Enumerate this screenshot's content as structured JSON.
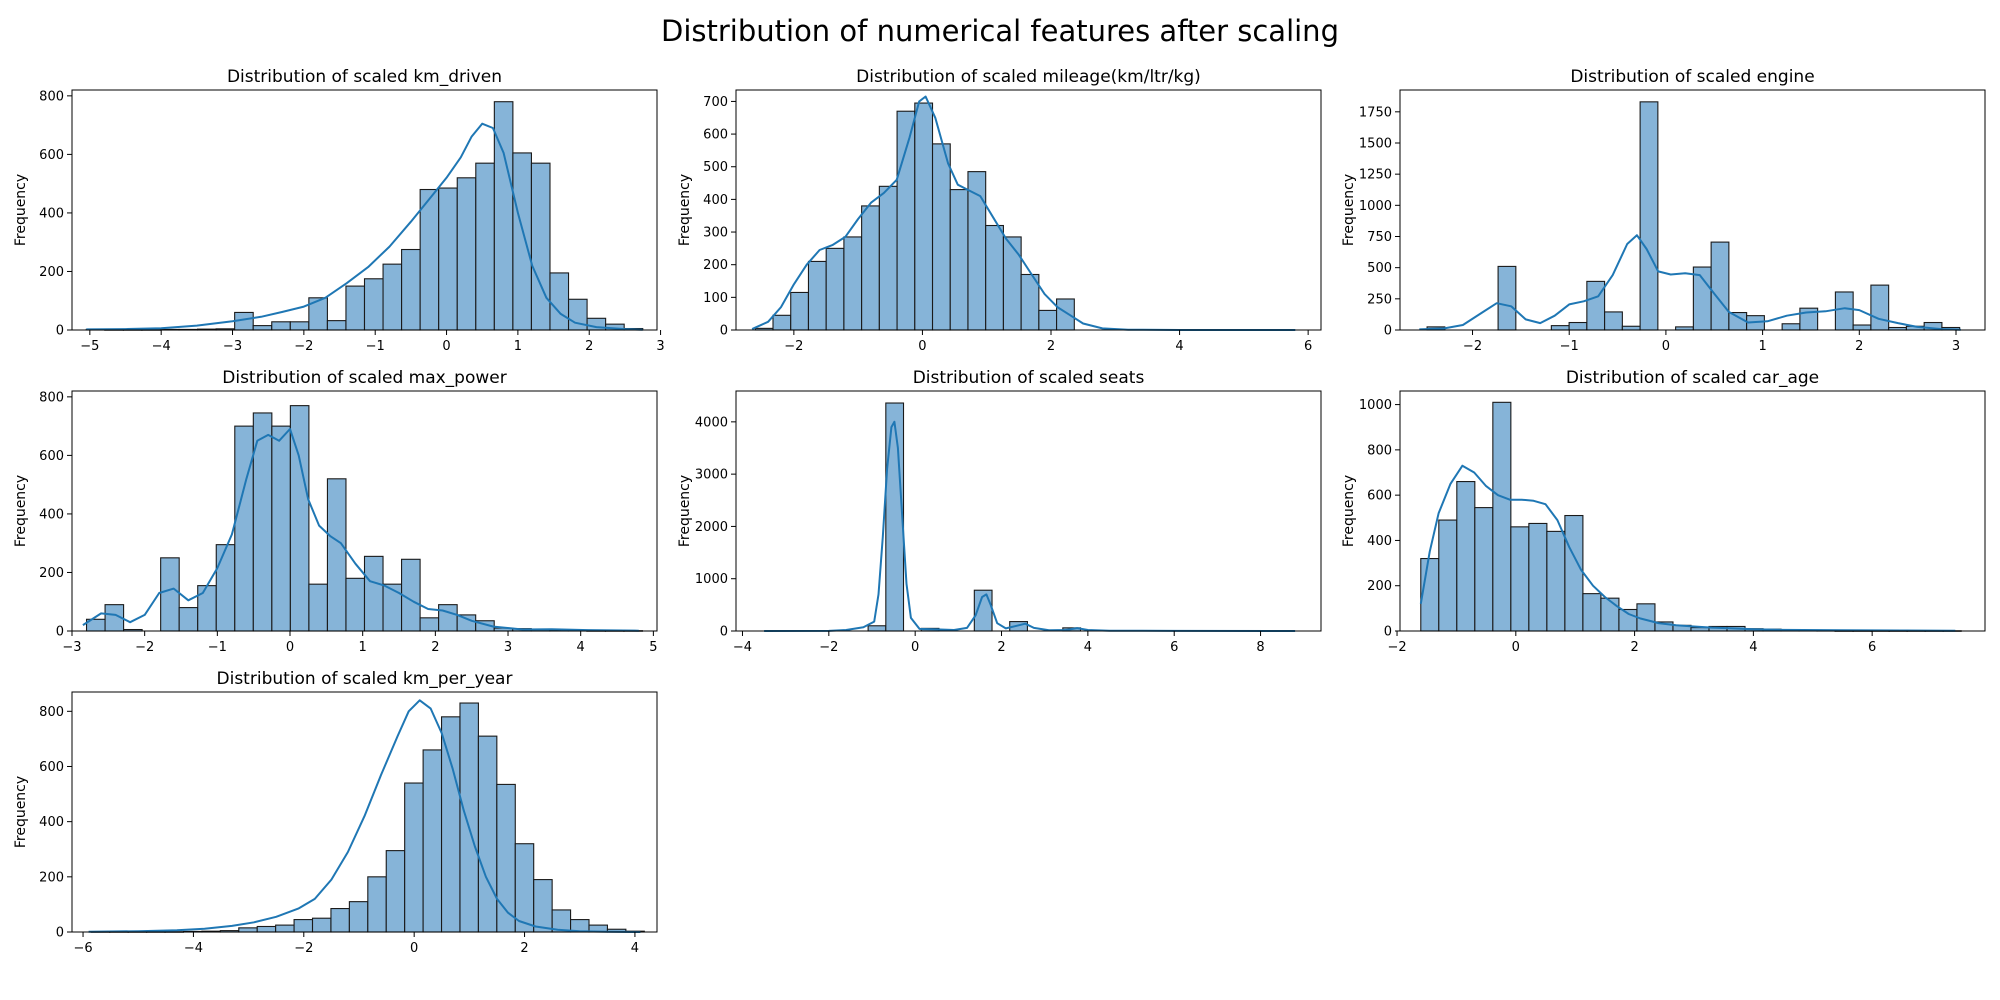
{
  "suptitle": "Distribution of numerical features after scaling",
  "bar_color": "#86b4d8",
  "bar_edge_color": "#1a1a1a",
  "kde_color": "#1f77b4",
  "chart_data": [
    {
      "type": "bar",
      "title": "Distribution of scaled km_driven",
      "xlabel": "",
      "ylabel": "Frequency",
      "xlim": [
        -5.25,
        2.95
      ],
      "ylim": [
        0,
        820
      ],
      "xticks": [
        -5,
        -4,
        -3,
        -2,
        -1,
        0,
        1,
        2,
        3
      ],
      "yticks": [
        0,
        200,
        400,
        600,
        800
      ],
      "bins": {
        "start": -5.05,
        "width": 0.26,
        "counts": [
          2,
          1,
          1,
          1,
          2,
          2,
          3,
          4,
          60,
          15,
          28,
          28,
          110,
          32,
          150,
          175,
          225,
          275,
          480,
          485,
          520,
          570,
          780,
          605,
          570,
          195,
          105,
          40,
          20,
          5
        ]
      },
      "kde": [
        [
          -5.05,
          2
        ],
        [
          -4.5,
          3
        ],
        [
          -4,
          6
        ],
        [
          -3.5,
          15
        ],
        [
          -3,
          30
        ],
        [
          -2.6,
          45
        ],
        [
          -2.3,
          62
        ],
        [
          -2,
          80
        ],
        [
          -1.7,
          110
        ],
        [
          -1.4,
          160
        ],
        [
          -1.1,
          215
        ],
        [
          -0.8,
          285
        ],
        [
          -0.5,
          370
        ],
        [
          -0.2,
          460
        ],
        [
          0,
          520
        ],
        [
          0.2,
          590
        ],
        [
          0.35,
          660
        ],
        [
          0.5,
          705
        ],
        [
          0.65,
          690
        ],
        [
          0.8,
          605
        ],
        [
          1,
          400
        ],
        [
          1.2,
          220
        ],
        [
          1.4,
          110
        ],
        [
          1.6,
          55
        ],
        [
          1.8,
          25
        ],
        [
          2.1,
          10
        ],
        [
          2.5,
          3
        ],
        [
          2.75,
          1
        ]
      ]
    },
    {
      "type": "bar",
      "title": "Distribution of scaled mileage(km/ltr/kg)",
      "xlabel": "",
      "ylabel": "Frequency",
      "xlim": [
        -2.9,
        6.2
      ],
      "ylim": [
        0,
        735
      ],
      "xticks": [
        -2,
        0,
        2,
        4,
        6
      ],
      "yticks": [
        0,
        100,
        200,
        300,
        400,
        500,
        600,
        700
      ],
      "bins": {
        "start": -2.6,
        "width": 0.2757,
        "counts": [
          5,
          45,
          115,
          210,
          250,
          285,
          380,
          440,
          670,
          695,
          570,
          430,
          485,
          320,
          285,
          170,
          60,
          95,
          0,
          0,
          0,
          0,
          0,
          0,
          0,
          0,
          0,
          0,
          0,
          1
        ]
      },
      "kde": [
        [
          -2.65,
          3
        ],
        [
          -2.4,
          25
        ],
        [
          -2.2,
          70
        ],
        [
          -2,
          140
        ],
        [
          -1.8,
          200
        ],
        [
          -1.6,
          245
        ],
        [
          -1.4,
          260
        ],
        [
          -1.2,
          285
        ],
        [
          -1,
          340
        ],
        [
          -0.8,
          390
        ],
        [
          -0.6,
          420
        ],
        [
          -0.4,
          460
        ],
        [
          -0.2,
          590
        ],
        [
          -0.05,
          700
        ],
        [
          0.05,
          715
        ],
        [
          0.2,
          650
        ],
        [
          0.4,
          510
        ],
        [
          0.55,
          445
        ],
        [
          0.7,
          430
        ],
        [
          0.9,
          410
        ],
        [
          1.1,
          345
        ],
        [
          1.3,
          280
        ],
        [
          1.5,
          230
        ],
        [
          1.7,
          170
        ],
        [
          1.9,
          110
        ],
        [
          2.1,
          70
        ],
        [
          2.3,
          45
        ],
        [
          2.5,
          20
        ],
        [
          2.8,
          5
        ],
        [
          3.2,
          1
        ],
        [
          4,
          0
        ],
        [
          5,
          0
        ],
        [
          5.8,
          0
        ]
      ]
    },
    {
      "type": "bar",
      "title": "Distribution of scaled engine",
      "xlabel": "",
      "ylabel": "Frequency",
      "xlim": [
        -2.75,
        3.3
      ],
      "ylim": [
        0,
        1925
      ],
      "xticks": [
        -2,
        -1,
        0,
        1,
        2,
        3
      ],
      "yticks": [
        0,
        250,
        500,
        750,
        1000,
        1250,
        1500,
        1750
      ],
      "bins": {
        "start": -2.47,
        "width": 0.1836,
        "counts": [
          25,
          0,
          0,
          0,
          510,
          0,
          0,
          35,
          60,
          390,
          145,
          30,
          1830,
          0,
          25,
          505,
          705,
          140,
          115,
          0,
          50,
          175,
          0,
          305,
          40,
          360,
          20,
          30,
          60,
          20
        ]
      },
      "kde": [
        [
          -2.55,
          5
        ],
        [
          -2.3,
          12
        ],
        [
          -2.1,
          40
        ],
        [
          -1.9,
          140
        ],
        [
          -1.75,
          215
        ],
        [
          -1.6,
          190
        ],
        [
          -1.45,
          85
        ],
        [
          -1.3,
          55
        ],
        [
          -1.15,
          115
        ],
        [
          -1,
          205
        ],
        [
          -0.85,
          230
        ],
        [
          -0.7,
          270
        ],
        [
          -0.55,
          440
        ],
        [
          -0.4,
          690
        ],
        [
          -0.3,
          760
        ],
        [
          -0.2,
          650
        ],
        [
          -0.08,
          470
        ],
        [
          0.05,
          445
        ],
        [
          0.2,
          455
        ],
        [
          0.35,
          440
        ],
        [
          0.5,
          290
        ],
        [
          0.65,
          145
        ],
        [
          0.85,
          60
        ],
        [
          1.05,
          70
        ],
        [
          1.25,
          115
        ],
        [
          1.45,
          140
        ],
        [
          1.65,
          150
        ],
        [
          1.85,
          175
        ],
        [
          2,
          160
        ],
        [
          2.2,
          90
        ],
        [
          2.4,
          55
        ],
        [
          2.6,
          25
        ],
        [
          2.85,
          7
        ],
        [
          3.05,
          2
        ]
      ]
    },
    {
      "type": "bar",
      "title": "Distribution of scaled max_power",
      "xlabel": "",
      "ylabel": "Frequency",
      "xlim": [
        -3.0,
        5.05
      ],
      "ylim": [
        0,
        820
      ],
      "xticks": [
        -3,
        -2,
        -1,
        0,
        1,
        2,
        3,
        4,
        5
      ],
      "yticks": [
        0,
        200,
        400,
        600,
        800
      ],
      "bins": {
        "start": -2.8,
        "width": 0.255,
        "counts": [
          40,
          90,
          5,
          0,
          250,
          80,
          155,
          295,
          700,
          745,
          700,
          770,
          160,
          520,
          180,
          255,
          160,
          245,
          45,
          90,
          55,
          35,
          10,
          8,
          5,
          3,
          2,
          1,
          1,
          1
        ]
      },
      "kde": [
        [
          -2.85,
          20
        ],
        [
          -2.6,
          60
        ],
        [
          -2.4,
          55
        ],
        [
          -2.2,
          30
        ],
        [
          -2,
          55
        ],
        [
          -1.8,
          130
        ],
        [
          -1.6,
          145
        ],
        [
          -1.4,
          105
        ],
        [
          -1.2,
          130
        ],
        [
          -1,
          215
        ],
        [
          -0.8,
          330
        ],
        [
          -0.6,
          520
        ],
        [
          -0.45,
          650
        ],
        [
          -0.3,
          670
        ],
        [
          -0.15,
          650
        ],
        [
          0,
          690
        ],
        [
          0.12,
          600
        ],
        [
          0.25,
          450
        ],
        [
          0.4,
          360
        ],
        [
          0.55,
          325
        ],
        [
          0.7,
          300
        ],
        [
          0.9,
          230
        ],
        [
          1.1,
          170
        ],
        [
          1.3,
          155
        ],
        [
          1.5,
          130
        ],
        [
          1.7,
          100
        ],
        [
          1.9,
          75
        ],
        [
          2.1,
          70
        ],
        [
          2.3,
          55
        ],
        [
          2.5,
          35
        ],
        [
          2.8,
          15
        ],
        [
          3.2,
          5
        ],
        [
          3.6,
          6
        ],
        [
          4.1,
          3
        ],
        [
          4.8,
          1
        ]
      ]
    },
    {
      "type": "bar",
      "title": "Distribution of scaled seats",
      "xlabel": "",
      "ylabel": "Frequency",
      "xlim": [
        -4.15,
        9.4
      ],
      "ylim": [
        0,
        4590
      ],
      "xticks": [
        -4,
        -2,
        0,
        2,
        4,
        6,
        8
      ],
      "yticks": [
        0,
        1000,
        2000,
        3000,
        4000
      ],
      "bins": {
        "start": -3.55,
        "width": 0.41,
        "counts": [
          0,
          0,
          0,
          0,
          0,
          0,
          100,
          4360,
          0,
          50,
          0,
          0,
          780,
          0,
          180,
          0,
          0,
          60,
          0,
          0,
          0,
          0,
          0,
          0,
          0,
          0,
          0,
          0,
          0,
          1
        ]
      },
      "kde": [
        [
          -3.5,
          0
        ],
        [
          -2,
          2
        ],
        [
          -1.6,
          20
        ],
        [
          -1.2,
          70
        ],
        [
          -0.95,
          180
        ],
        [
          -0.85,
          700
        ],
        [
          -0.75,
          1800
        ],
        [
          -0.65,
          3100
        ],
        [
          -0.55,
          3900
        ],
        [
          -0.48,
          4000
        ],
        [
          -0.4,
          3500
        ],
        [
          -0.3,
          2200
        ],
        [
          -0.2,
          900
        ],
        [
          -0.1,
          250
        ],
        [
          0.1,
          40
        ],
        [
          0.5,
          30
        ],
        [
          0.9,
          20
        ],
        [
          1.2,
          60
        ],
        [
          1.4,
          300
        ],
        [
          1.55,
          650
        ],
        [
          1.65,
          700
        ],
        [
          1.75,
          500
        ],
        [
          1.9,
          150
        ],
        [
          2.1,
          50
        ],
        [
          2.35,
          100
        ],
        [
          2.55,
          140
        ],
        [
          2.75,
          60
        ],
        [
          3.1,
          15
        ],
        [
          3.5,
          20
        ],
        [
          3.75,
          55
        ],
        [
          4,
          20
        ],
        [
          4.5,
          5
        ],
        [
          6,
          2
        ],
        [
          8.8,
          0
        ]
      ]
    },
    {
      "type": "bar",
      "title": "Distribution of scaled car_age",
      "xlabel": "",
      "ylabel": "Frequency",
      "xlim": [
        -1.95,
        7.9
      ],
      "ylim": [
        0,
        1060
      ],
      "xticks": [
        -2,
        0,
        2,
        4,
        6
      ],
      "yticks": [
        0,
        200,
        400,
        600,
        800,
        1000
      ],
      "bins": {
        "start": -1.6,
        "width": 0.3033,
        "counts": [
          320,
          490,
          660,
          545,
          1010,
          460,
          475,
          440,
          510,
          165,
          145,
          95,
          120,
          40,
          25,
          15,
          20,
          20,
          10,
          8,
          5,
          3,
          2,
          1,
          1,
          1,
          1,
          1,
          1,
          1
        ]
      },
      "kde": [
        [
          -1.6,
          120
        ],
        [
          -1.45,
          350
        ],
        [
          -1.3,
          520
        ],
        [
          -1.1,
          650
        ],
        [
          -0.9,
          730
        ],
        [
          -0.7,
          700
        ],
        [
          -0.5,
          640
        ],
        [
          -0.3,
          600
        ],
        [
          -0.1,
          580
        ],
        [
          0.1,
          580
        ],
        [
          0.3,
          575
        ],
        [
          0.5,
          560
        ],
        [
          0.7,
          490
        ],
        [
          0.9,
          370
        ],
        [
          1.1,
          270
        ],
        [
          1.3,
          200
        ],
        [
          1.5,
          150
        ],
        [
          1.7,
          110
        ],
        [
          1.9,
          75
        ],
        [
          2.1,
          55
        ],
        [
          2.4,
          35
        ],
        [
          2.7,
          25
        ],
        [
          3,
          20
        ],
        [
          3.3,
          15
        ],
        [
          3.6,
          12
        ],
        [
          4,
          8
        ],
        [
          4.5,
          5
        ],
        [
          5.5,
          3
        ],
        [
          6.5,
          2
        ],
        [
          7.4,
          1
        ]
      ]
    },
    {
      "type": "bar",
      "title": "Distribution of scaled km_per_year",
      "xlabel": "",
      "ylabel": "Frequency",
      "xlim": [
        -6.2,
        4.4
      ],
      "ylim": [
        0,
        870
      ],
      "xticks": [
        -6,
        -4,
        -2,
        0,
        2,
        4
      ],
      "yticks": [
        0,
        200,
        400,
        600,
        800
      ],
      "bins": {
        "start": -5.85,
        "width": 0.334,
        "counts": [
          1,
          1,
          1,
          1,
          1,
          2,
          3,
          5,
          15,
          20,
          25,
          45,
          50,
          85,
          110,
          200,
          295,
          540,
          660,
          780,
          830,
          710,
          535,
          320,
          190,
          80,
          45,
          25,
          10,
          3
        ]
      },
      "kde": [
        [
          -5.9,
          1
        ],
        [
          -5,
          3
        ],
        [
          -4.3,
          6
        ],
        [
          -3.8,
          12
        ],
        [
          -3.3,
          22
        ],
        [
          -2.9,
          35
        ],
        [
          -2.5,
          55
        ],
        [
          -2.1,
          85
        ],
        [
          -1.8,
          120
        ],
        [
          -1.5,
          190
        ],
        [
          -1.2,
          290
        ],
        [
          -0.9,
          420
        ],
        [
          -0.6,
          570
        ],
        [
          -0.3,
          710
        ],
        [
          -0.1,
          800
        ],
        [
          0.1,
          840
        ],
        [
          0.3,
          810
        ],
        [
          0.5,
          720
        ],
        [
          0.7,
          590
        ],
        [
          0.9,
          440
        ],
        [
          1.1,
          310
        ],
        [
          1.3,
          200
        ],
        [
          1.5,
          120
        ],
        [
          1.7,
          70
        ],
        [
          1.9,
          40
        ],
        [
          2.2,
          20
        ],
        [
          2.6,
          8
        ],
        [
          3,
          3
        ],
        [
          3.5,
          1
        ],
        [
          4.1,
          0
        ]
      ]
    }
  ]
}
